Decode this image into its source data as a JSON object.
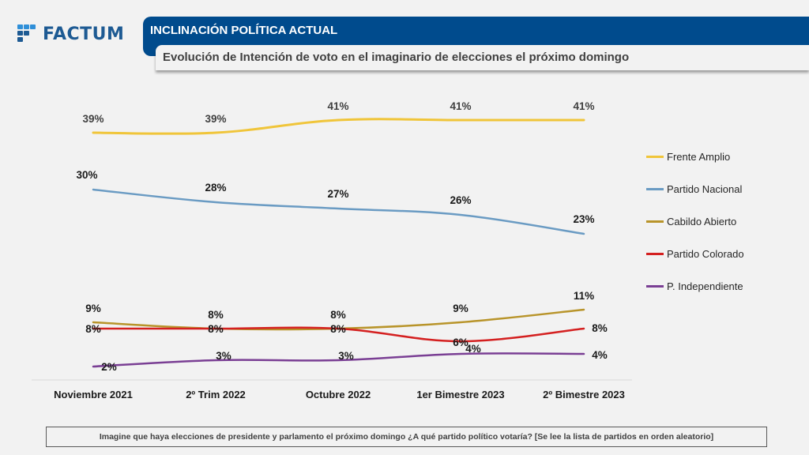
{
  "brand": {
    "logo_text": "FACTUM",
    "logo_icon": "factum-logo-icon",
    "color": "#1d5a93"
  },
  "header": {
    "title": "INCLINACIÓN POLÍTICA ACTUAL",
    "subtitle": "Evolución de Intención de voto en el imaginario de elecciones el próximo domingo",
    "title_bg": "#004b8d"
  },
  "chart_data": {
    "type": "line",
    "title": "Evolución de Intención de voto en el imaginario de elecciones el próximo domingo",
    "xlabel": "",
    "ylabel": "",
    "categories": [
      "Noviembre 2021",
      "2º Trim 2022",
      "Octubre 2022",
      "1er Bimestre 2023",
      "2º Bimestre 2023"
    ],
    "ylim": [
      0,
      45
    ],
    "grid": false,
    "legend_position": "right",
    "unit": "%",
    "series": [
      {
        "name": "Frente Amplio",
        "color": "#f0c53a",
        "label_color": "#404040",
        "values": [
          39,
          39,
          41,
          41,
          41
        ],
        "labels": [
          "39%",
          "39%",
          "41%",
          "41%",
          "41%"
        ]
      },
      {
        "name": "Partido Nacional",
        "color": "#6a9bc3",
        "label_color": "#1a1a1a",
        "values": [
          30,
          28,
          27,
          26,
          23
        ],
        "labels": [
          "30%",
          "28%",
          "27%",
          "26%",
          "23%"
        ]
      },
      {
        "name": "Cabildo Abierto",
        "color": "#b8942a",
        "label_color": "#1a1a1a",
        "values": [
          9,
          8,
          8,
          9,
          11
        ],
        "labels": [
          "9%",
          "8%",
          "8%",
          "9%",
          "11%"
        ]
      },
      {
        "name": "Partido Colorado",
        "color": "#d42020",
        "label_color": "#1a1a1a",
        "values": [
          8,
          8,
          8,
          6,
          8
        ],
        "labels": [
          "8%",
          "8%",
          "8%",
          "6%",
          "8%"
        ]
      },
      {
        "name": "P. Independiente",
        "color": "#7a3f94",
        "label_color": "#1a1a1a",
        "values": [
          2,
          3,
          3,
          4,
          4
        ],
        "labels": [
          "2%",
          "3%",
          "3%",
          "4%",
          "4%"
        ]
      }
    ]
  },
  "footnote": "Imagine que haya elecciones de presidente y parlamento el próximo domingo ¿A qué partido político votaría? [Se lee la lista de partidos en orden aleatorio]"
}
